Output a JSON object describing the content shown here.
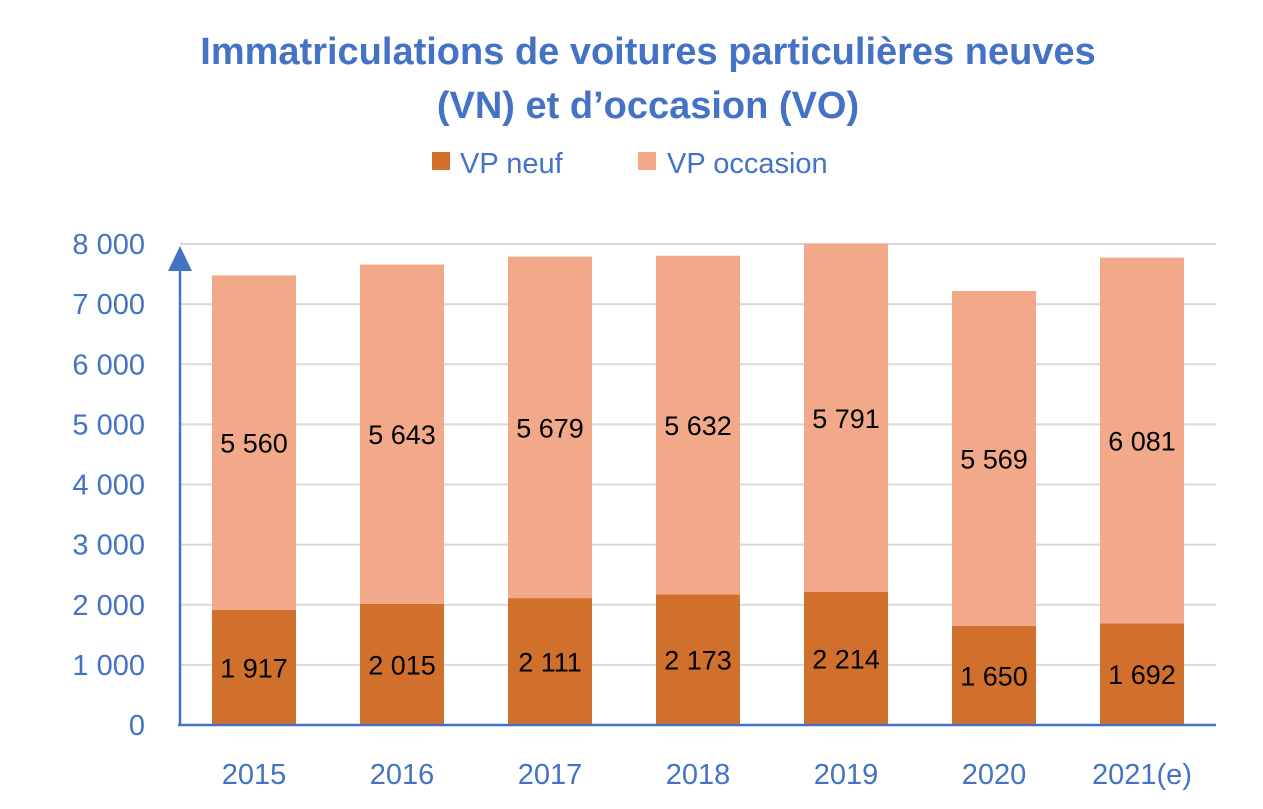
{
  "chart_data": {
    "type": "bar",
    "stacked": true,
    "title_lines": [
      "Immatriculations de voitures particulières neuves",
      "(VN) et d’occasion (VO)"
    ],
    "categories": [
      "2015",
      "2016",
      "2017",
      "2018",
      "2019",
      "2020",
      "2021(e)"
    ],
    "series": [
      {
        "name": "VP neuf",
        "color": "#D0702C",
        "values": [
          1917,
          2015,
          2111,
          2173,
          2214,
          1650,
          1692
        ],
        "labels": [
          "1 917",
          "2 015",
          "2 111",
          "2 173",
          "2 214",
          "1 650",
          "1 692"
        ]
      },
      {
        "name": "VP occasion",
        "color": "#F1A98A",
        "values": [
          5560,
          5643,
          5679,
          5632,
          5791,
          5569,
          6081
        ],
        "labels": [
          "5 560",
          "5 643",
          "5 679",
          "5 632",
          "5 791",
          "5 569",
          "6 081"
        ]
      }
    ],
    "ylim": [
      0,
      8000
    ],
    "yticks": [
      0,
      1000,
      2000,
      3000,
      4000,
      5000,
      6000,
      7000,
      8000
    ],
    "ytick_labels": [
      "0",
      "1 000",
      "2 000",
      "3 000",
      "4 000",
      "5 000",
      "6 000",
      "7 000",
      "8 000"
    ],
    "grid": true,
    "legend_position": "top",
    "axis_color": "#4472C4",
    "grid_color": "#D9D9D9"
  }
}
